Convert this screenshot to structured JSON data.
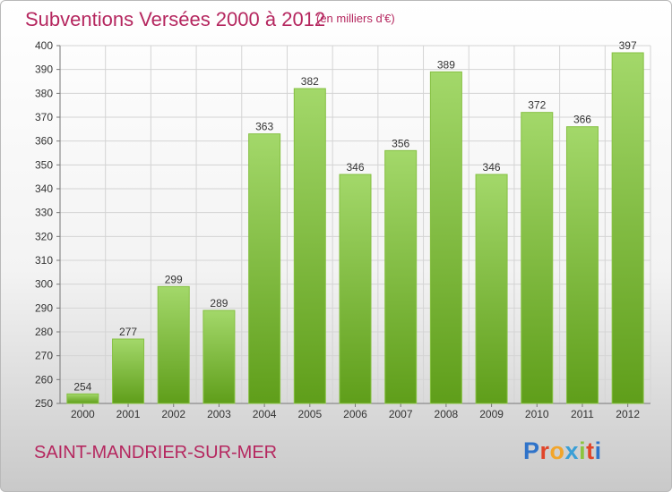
{
  "title": "Subventions Versées 2000 à 2012",
  "unit_note": "(en milliers d'€)",
  "commune": "SAINT-MANDRIER-SUR-MER",
  "logo": {
    "letters": [
      "P",
      "r",
      "o",
      "x",
      "i",
      "t",
      "i"
    ],
    "colors": [
      "#2f73c9",
      "#e0452a",
      "#f2a52b",
      "#3a9fd6",
      "#8cc43f",
      "#e0452a",
      "#2f73c9"
    ]
  },
  "colors": {
    "bar_top": "#a3d86a",
    "bar_bottom": "#5f9e1a",
    "grid": "#d4d4d4",
    "title": "#b5275f"
  },
  "chart_data": {
    "type": "bar",
    "categories": [
      "2000",
      "2001",
      "2002",
      "2003",
      "2004",
      "2005",
      "2006",
      "2007",
      "2008",
      "2009",
      "2010",
      "2011",
      "2012"
    ],
    "values": [
      254,
      277,
      299,
      289,
      363,
      382,
      346,
      356,
      389,
      346,
      372,
      366,
      397
    ],
    "ylim": [
      250,
      400
    ],
    "yticks": [
      250,
      260,
      270,
      280,
      290,
      300,
      310,
      320,
      330,
      340,
      350,
      360,
      370,
      380,
      390,
      400
    ],
    "grid": true,
    "data_labels": true
  }
}
